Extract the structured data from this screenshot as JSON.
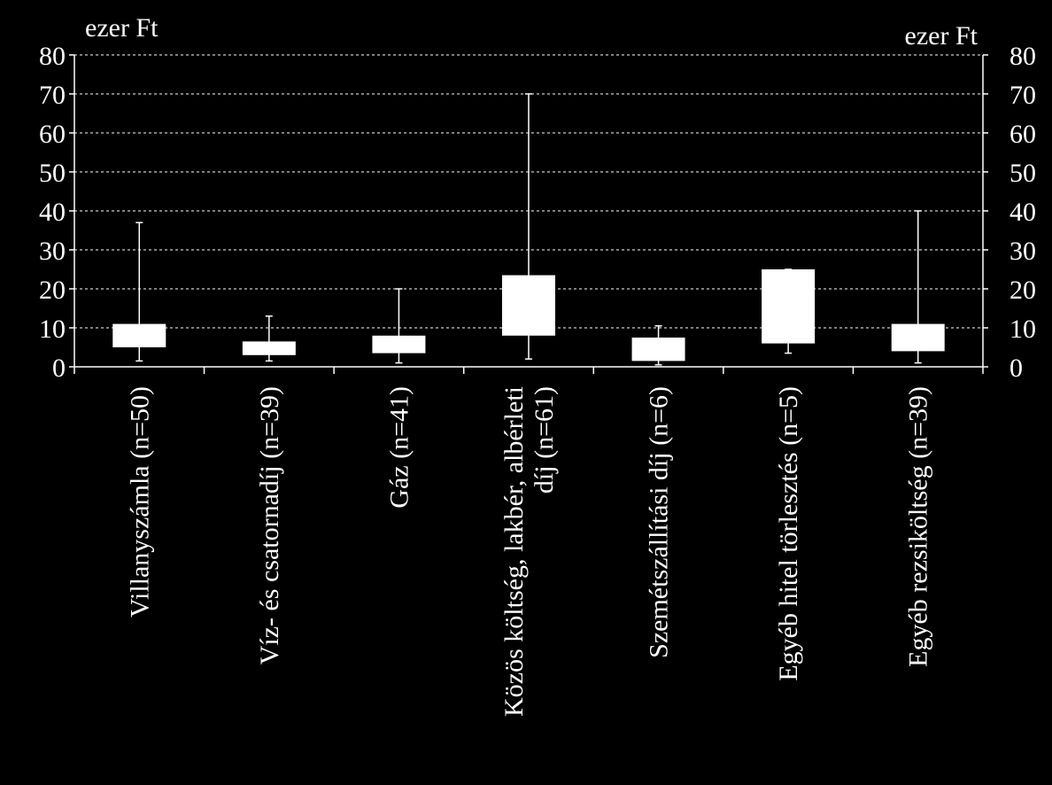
{
  "chart_data": {
    "type": "boxplot",
    "unit_left": "ezer Ft",
    "unit_right": "ezer Ft",
    "ylim": [
      0,
      80
    ],
    "y_ticks": [
      "0",
      "10",
      "20",
      "30",
      "40",
      "50",
      "60",
      "70",
      "80"
    ],
    "grid": "dashed horizontal",
    "colors": {
      "background": "#000000",
      "box": "#ffffff",
      "axis": "#ffffff",
      "text": "#ffffff"
    },
    "categories": [
      {
        "label": [
          "Villanyszámla (n=50)"
        ],
        "min": 1.5,
        "q1": 5,
        "q3": 11,
        "max": 37
      },
      {
        "label": [
          "Víz- és csatornadíj (n=39)"
        ],
        "min": 1.5,
        "q1": 3,
        "q3": 6.5,
        "max": 13
      },
      {
        "label": [
          "Gáz (n=41)"
        ],
        "min": 1,
        "q1": 3.5,
        "q3": 8,
        "max": 20
      },
      {
        "label": [
          "Közös költség, lakbér, albérleti",
          "díj (n=61)"
        ],
        "min": 2,
        "q1": 8,
        "q3": 23.5,
        "max": 70
      },
      {
        "label": [
          "Szemétszállítási díj (n=6)"
        ],
        "min": 0.5,
        "q1": 1.5,
        "q3": 7.5,
        "max": 10.5
      },
      {
        "label": [
          "Egyéb hitel törlesztés (n=5)"
        ],
        "min": 3.5,
        "q1": 6,
        "q3": 25,
        "max": 25
      },
      {
        "label": [
          "Egyéb rezsiköltség (n=39)"
        ],
        "min": 1,
        "q1": 4,
        "q3": 11,
        "max": 40
      }
    ]
  }
}
